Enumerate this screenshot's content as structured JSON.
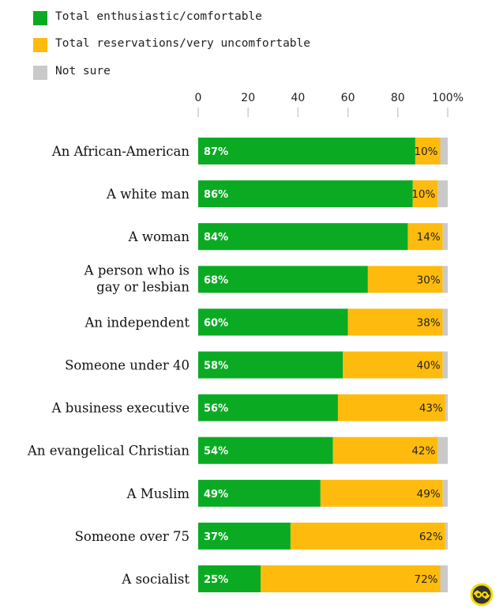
{
  "chart_data": {
    "type": "bar",
    "orientation": "horizontal",
    "stacked": true,
    "title": "",
    "xlabel": "",
    "ylabel": "",
    "xlim": [
      0,
      100
    ],
    "x_ticks": [
      "0",
      "20",
      "40",
      "60",
      "80",
      "100%"
    ],
    "x_tick_values": [
      0,
      20,
      40,
      60,
      80,
      100
    ],
    "legend_position": "top-left",
    "categories": [
      [
        "An African-American"
      ],
      [
        "A white man"
      ],
      [
        "A woman"
      ],
      [
        "A person who is",
        "gay or lesbian"
      ],
      [
        "An independent"
      ],
      [
        "Someone under 40"
      ],
      [
        "A business executive"
      ],
      [
        "An evangelical Christian"
      ],
      [
        "A Muslim"
      ],
      [
        "Someone over 75"
      ],
      [
        "A socialist"
      ]
    ],
    "series": [
      {
        "name": "Total enthusiastic/comfortable",
        "color": "#0aab23",
        "values": [
          87,
          86,
          84,
          68,
          60,
          58,
          56,
          54,
          49,
          37,
          25
        ],
        "labels": [
          "87%",
          "86%",
          "84%",
          "68%",
          "60%",
          "58%",
          "56%",
          "54%",
          "49%",
          "37%",
          "25%"
        ]
      },
      {
        "name": "Total reservations/very uncomfortable",
        "color": "#ffbb0d",
        "values": [
          10,
          10,
          14,
          30,
          38,
          40,
          43,
          42,
          49,
          62,
          72
        ],
        "labels": [
          "10%",
          "10%",
          "14%",
          "30%",
          "38%",
          "40%",
          "43%",
          "42%",
          "49%",
          "62%",
          "72%"
        ]
      },
      {
        "name": "Not sure",
        "color": "#c9c9c9",
        "values": [
          3,
          4,
          2,
          2,
          2,
          2,
          1,
          4,
          2,
          1,
          3
        ]
      }
    ]
  },
  "logo": {
    "name": "cbs-news-logo",
    "ring_color": "#f5d90a",
    "face_color": "#333333"
  }
}
